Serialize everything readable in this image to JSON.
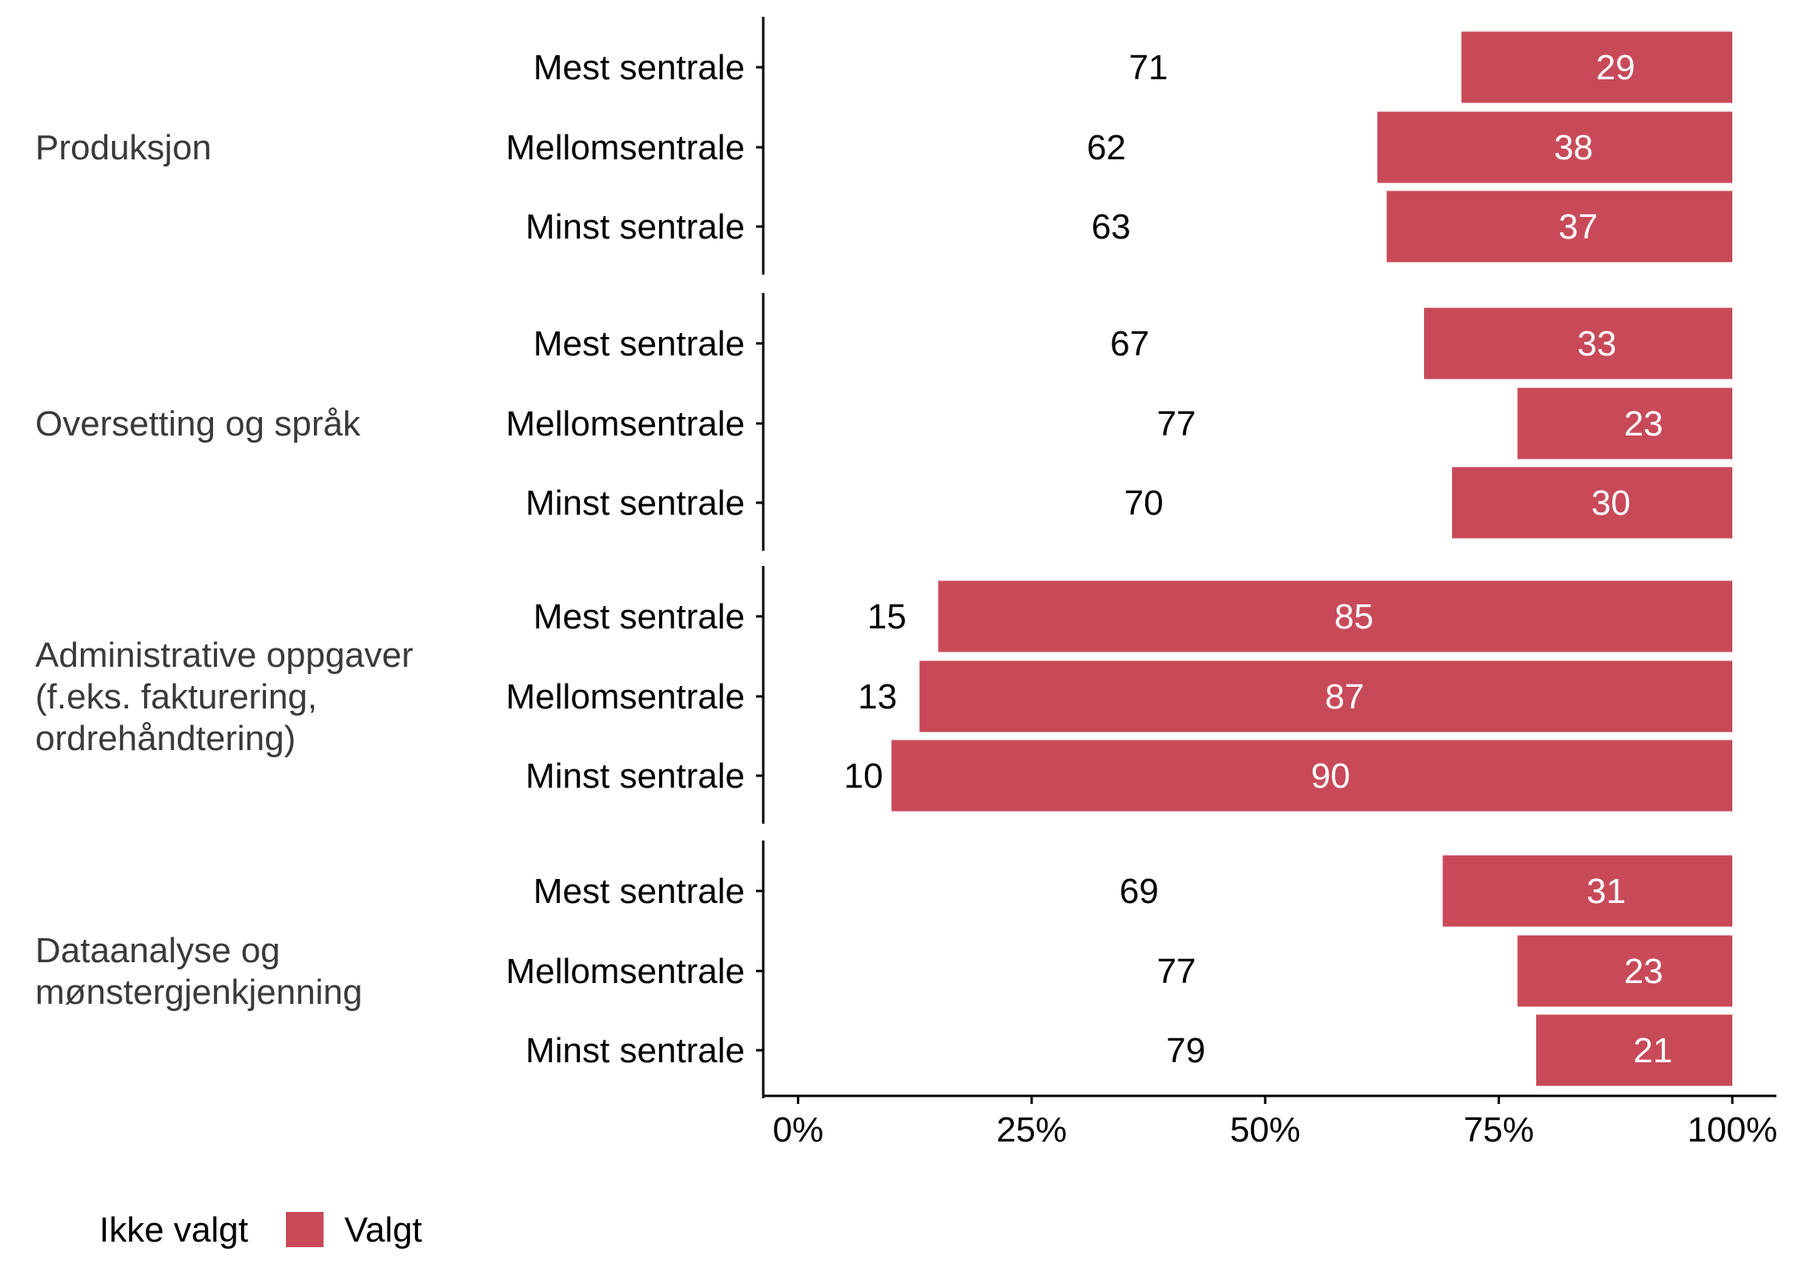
{
  "chart_data": {
    "type": "bar",
    "orientation": "horizontal",
    "stacked": true,
    "title": "",
    "xlabel": "",
    "ylabel": "",
    "xlim": [
      0,
      100
    ],
    "x_ticks": [
      "0%",
      "25%",
      "50%",
      "75%",
      "100%"
    ],
    "x_tick_values": [
      0,
      25,
      50,
      75,
      100
    ],
    "legend": {
      "position": "bottom-left",
      "entries": [
        "Ikke valgt",
        "Valgt"
      ]
    },
    "colors": {
      "Ikke valgt": "#ffffff",
      "Valgt": "#c84a59"
    },
    "groups": [
      {
        "label": [
          "Produksjon"
        ],
        "categories": [
          "Mest sentrale",
          "Mellomsentrale",
          "Minst sentrale"
        ],
        "ikke_valgt": [
          71,
          62,
          63
        ],
        "valgt": [
          29,
          38,
          37
        ]
      },
      {
        "label": [
          "Oversetting og språk"
        ],
        "categories": [
          "Mest sentrale",
          "Mellomsentrale",
          "Minst sentrale"
        ],
        "ikke_valgt": [
          67,
          77,
          70
        ],
        "valgt": [
          33,
          23,
          30
        ]
      },
      {
        "label": [
          "Administrative oppgaver",
          "(f.eks. fakturering,",
          "ordrehåndtering)"
        ],
        "categories": [
          "Mest sentrale",
          "Mellomsentrale",
          "Minst sentrale"
        ],
        "ikke_valgt": [
          15,
          13,
          10
        ],
        "valgt": [
          85,
          87,
          90
        ]
      },
      {
        "label": [
          "Dataanalyse og",
          "mønstergjenkjenning"
        ],
        "categories": [
          "Mest sentrale",
          "Mellomsentrale",
          "Minst sentrale"
        ],
        "ikke_valgt": [
          69,
          77,
          79
        ],
        "valgt": [
          31,
          23,
          21
        ]
      }
    ]
  }
}
